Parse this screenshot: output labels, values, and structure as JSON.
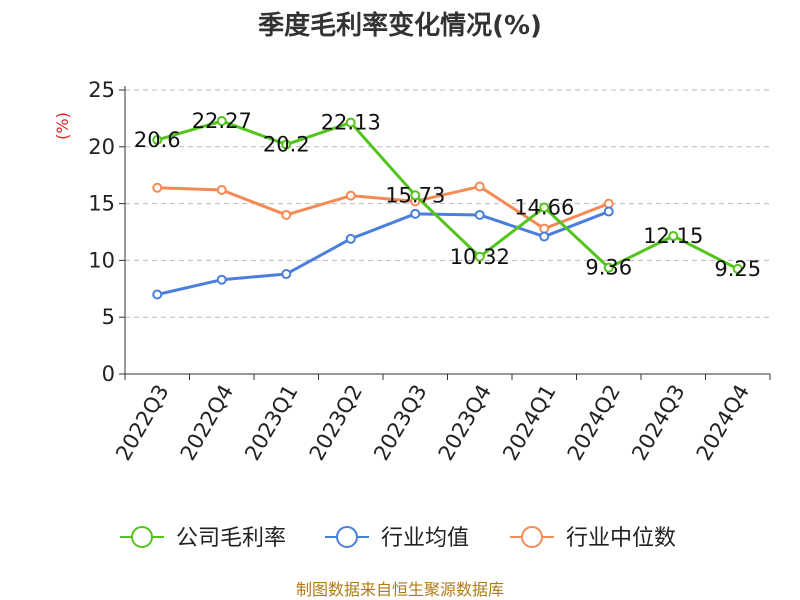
{
  "chart_data": {
    "type": "line",
    "title": "季度毛利率变化情况(%)",
    "unit_label": "(%)",
    "categories": [
      "2022Q3",
      "2022Q4",
      "2023Q1",
      "2023Q2",
      "2023Q3",
      "2023Q4",
      "2024Q1",
      "2024Q2",
      "2024Q3",
      "2024Q4"
    ],
    "ylim": [
      0,
      25
    ],
    "yticks": [
      0,
      5,
      10,
      15,
      20,
      25
    ],
    "grid": "horizontal-dashed",
    "legend_position": "bottom",
    "series": [
      {
        "name": "公司毛利率",
        "color": "#52c41a",
        "values": [
          20.6,
          22.27,
          20.2,
          22.13,
          15.73,
          10.32,
          14.66,
          9.36,
          12.15,
          9.25
        ],
        "labels": [
          "20.6",
          "22.27",
          "20.2",
          "22.13",
          "15.73",
          "10.32",
          "14.66",
          "9.36",
          "12.15",
          "9.25"
        ]
      },
      {
        "name": "行业均值",
        "color": "#4a7fdb",
        "values": [
          7.0,
          8.3,
          8.8,
          11.9,
          14.1,
          14.0,
          12.1,
          14.3,
          null,
          null
        ]
      },
      {
        "name": "行业中位数",
        "color": "#f58a55",
        "values": [
          16.4,
          16.2,
          14.0,
          15.7,
          15.2,
          16.5,
          12.8,
          15.0,
          null,
          null
        ]
      }
    ],
    "source": "制图数据来自恒生聚源数据库"
  }
}
